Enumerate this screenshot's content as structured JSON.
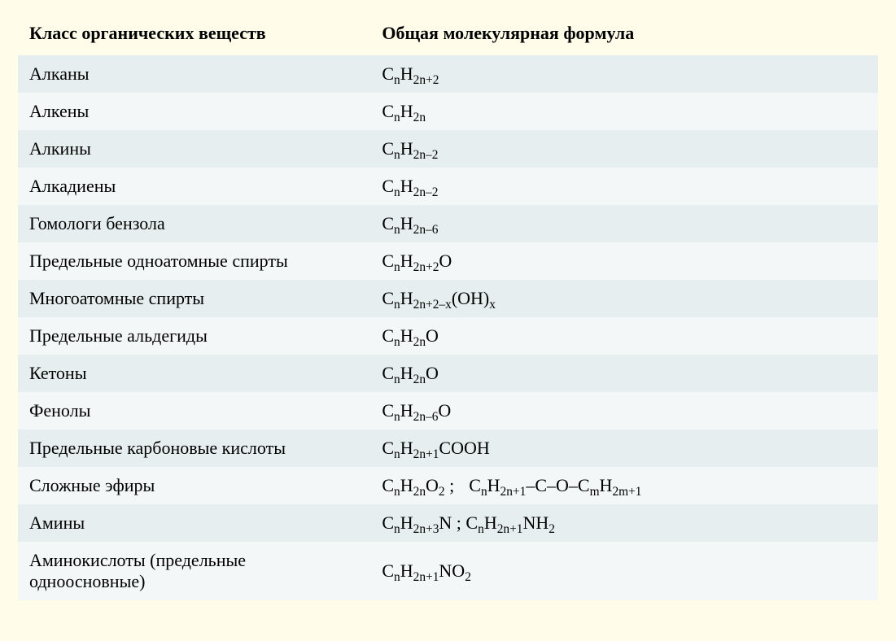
{
  "table": {
    "header_left": "Класс органических веществ",
    "header_right": "Общая молекулярная формула",
    "header_fontsize": 22,
    "body_fontsize": 22,
    "background_color": "#fffdea",
    "row_odd_color": "#e7eeef",
    "row_even_color": "#f4f7f7",
    "text_color": "#000000",
    "font_family": "Georgia, Times New Roman, serif",
    "col_left_width_pct": 41,
    "col_right_width_pct": 59,
    "rows": [
      {
        "label": "Алканы",
        "formula_tokens": [
          [
            "C",
            ""
          ],
          [
            "",
            "n"
          ],
          [
            "H",
            ""
          ],
          [
            "",
            "2n+2"
          ]
        ]
      },
      {
        "label": "Алкены",
        "formula_tokens": [
          [
            "C",
            ""
          ],
          [
            "",
            "n"
          ],
          [
            "H",
            ""
          ],
          [
            "",
            "2n"
          ]
        ]
      },
      {
        "label": "Алкины",
        "formula_tokens": [
          [
            "C",
            ""
          ],
          [
            "",
            "n"
          ],
          [
            "H",
            ""
          ],
          [
            "",
            "2n–2"
          ]
        ]
      },
      {
        "label": "Алкадиены",
        "formula_tokens": [
          [
            "C",
            ""
          ],
          [
            "",
            "n"
          ],
          [
            "H",
            ""
          ],
          [
            "",
            "2n–2"
          ]
        ]
      },
      {
        "label": "Гомологи бензола",
        "formula_tokens": [
          [
            "C",
            ""
          ],
          [
            "",
            "n"
          ],
          [
            "H",
            ""
          ],
          [
            "",
            "2n–6"
          ]
        ]
      },
      {
        "label": "Предельные одноатомные спирты",
        "formula_tokens": [
          [
            "C",
            ""
          ],
          [
            "",
            "n"
          ],
          [
            "H",
            ""
          ],
          [
            "",
            "2n+2"
          ],
          [
            "O",
            ""
          ]
        ]
      },
      {
        "label": "Многоатомные спирты",
        "formula_tokens": [
          [
            "C",
            ""
          ],
          [
            "",
            "n"
          ],
          [
            "H",
            ""
          ],
          [
            "",
            "2n+2–x"
          ],
          [
            "(OH)",
            ""
          ],
          [
            "",
            "x"
          ]
        ]
      },
      {
        "label": "Предельные альдегиды",
        "formula_tokens": [
          [
            "C",
            ""
          ],
          [
            "",
            "n"
          ],
          [
            "H",
            ""
          ],
          [
            "",
            "2n"
          ],
          [
            "O",
            ""
          ]
        ]
      },
      {
        "label": "Кетоны",
        "formula_tokens": [
          [
            "C",
            ""
          ],
          [
            "",
            "n"
          ],
          [
            "H",
            ""
          ],
          [
            "",
            "2n"
          ],
          [
            "O",
            ""
          ]
        ]
      },
      {
        "label": "Фенолы",
        "formula_tokens": [
          [
            "C",
            ""
          ],
          [
            "",
            "n"
          ],
          [
            "H",
            ""
          ],
          [
            "",
            "2n–6"
          ],
          [
            "O",
            ""
          ]
        ]
      },
      {
        "label": "Предельные карбоновые кислоты",
        "formula_tokens": [
          [
            "C",
            ""
          ],
          [
            "",
            "n"
          ],
          [
            "H",
            ""
          ],
          [
            "",
            "2n+1"
          ],
          [
            "COOH",
            ""
          ]
        ]
      },
      {
        "label": "Сложные эфиры",
        "formula_tokens": [
          [
            "C",
            ""
          ],
          [
            "",
            "n"
          ],
          [
            "H",
            ""
          ],
          [
            "",
            "2n"
          ],
          [
            "O",
            ""
          ],
          [
            "",
            "2"
          ],
          [
            " ;",
            ""
          ],
          [
            "SEP",
            ""
          ],
          [
            "C",
            ""
          ],
          [
            "",
            "n"
          ],
          [
            "H",
            ""
          ],
          [
            "",
            "2n+1"
          ],
          [
            "–C–O–C",
            ""
          ],
          [
            "",
            "m"
          ],
          [
            "H",
            ""
          ],
          [
            "",
            "2m+1"
          ]
        ]
      },
      {
        "label": "Амины",
        "formula_tokens": [
          [
            "C",
            ""
          ],
          [
            "",
            "n"
          ],
          [
            "H",
            ""
          ],
          [
            "",
            "2n+3"
          ],
          [
            "N ; C",
            ""
          ],
          [
            "",
            "n"
          ],
          [
            "H",
            ""
          ],
          [
            "",
            "2n+1"
          ],
          [
            "NH",
            ""
          ],
          [
            "",
            "2"
          ]
        ]
      },
      {
        "label": "Аминокислоты (предельные одноосновные)",
        "formula_tokens": [
          [
            "C",
            ""
          ],
          [
            "",
            "n"
          ],
          [
            "H",
            ""
          ],
          [
            "",
            "2n+1"
          ],
          [
            "NO",
            ""
          ],
          [
            "",
            "2"
          ]
        ]
      }
    ]
  }
}
